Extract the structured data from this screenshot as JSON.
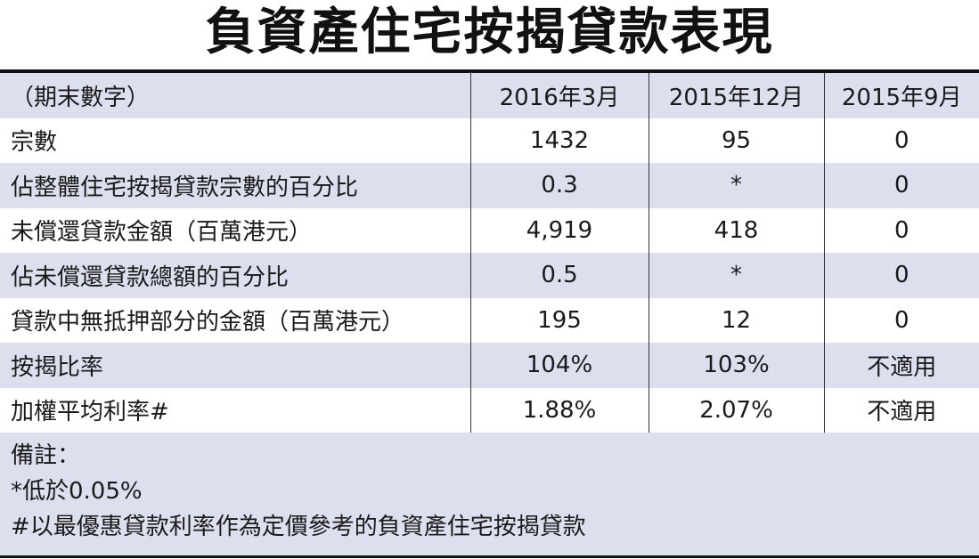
{
  "title": "負資產住宅按揭貸款表現",
  "chart_data": {
    "type": "table",
    "title": "負資產住宅按揭貸款表現",
    "header": [
      "（期末數字）",
      "2016年3月",
      "2015年12月",
      "2015年9月"
    ],
    "rows": [
      [
        "宗數",
        "1432",
        "95",
        "0"
      ],
      [
        "佔整體住宅按揭貸款宗數的百分比",
        "0.3",
        "*",
        "0"
      ],
      [
        "未償還貸款金額（百萬港元）",
        "4,919",
        "418",
        "0"
      ],
      [
        "佔未償還貸款總額的百分比",
        "0.5",
        "*",
        "0"
      ],
      [
        "貸款中無抵押部分的金額（百萬港元）",
        "195",
        "12",
        "0"
      ],
      [
        "按揭比率",
        "104%",
        "103%",
        "不適用"
      ],
      [
        "加權平均利率#",
        "1.88%",
        "2.07%",
        "不適用"
      ]
    ]
  },
  "notes": [
    "備註：",
    "*低於0.05%",
    "#以最優惠貸款利率作為定價參考的負資產住宅按揭貸款"
  ],
  "colors": {
    "shade": "#dcdfed",
    "rule": "#111111"
  }
}
